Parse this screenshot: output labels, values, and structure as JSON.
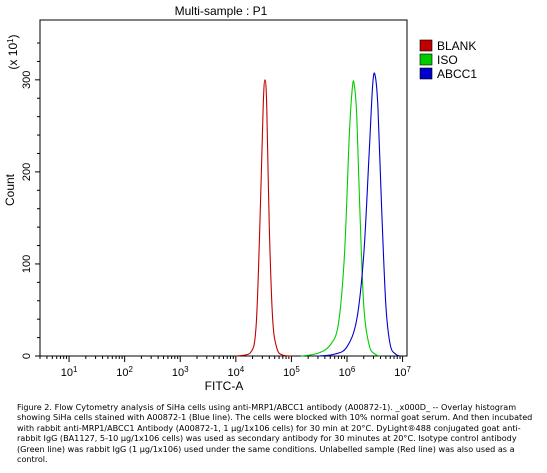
{
  "chart_data": {
    "type": "line",
    "title": "Multi-sample : P1",
    "xlabel": "FITC-A",
    "ylabel": "Count",
    "y_multiplier": "(x 10",
    "y_multiplier_exp": "1",
    "y_multiplier_close": ")",
    "x_scale": "log",
    "xlim": [
      3,
      12000000
    ],
    "ylim": [
      0,
      365
    ],
    "x_ticks": [
      {
        "base": "10",
        "exp": "1",
        "value": 10
      },
      {
        "base": "10",
        "exp": "2",
        "value": 100
      },
      {
        "base": "10",
        "exp": "3",
        "value": 1000
      },
      {
        "base": "10",
        "exp": "4",
        "value": 10000
      },
      {
        "base": "10",
        "exp": "5",
        "value": 100000
      },
      {
        "base": "10",
        "exp": "6",
        "value": 1000000
      },
      {
        "base": "10",
        "exp": "7",
        "value": 10000000
      }
    ],
    "y_ticks": [
      {
        "label": "0",
        "value": 0
      },
      {
        "label": "100",
        "value": 100
      },
      {
        "label": "200",
        "value": 200
      },
      {
        "label": "300",
        "value": 300
      }
    ],
    "legend_position": "top-right",
    "series": [
      {
        "name": "BLANK",
        "color": "#c00000",
        "x": [
          10000,
          18000,
          23000,
          27000,
          31000,
          33500,
          36000,
          40000,
          46000,
          55000,
          70000,
          100000
        ],
        "y": [
          0,
          3,
          30,
          140,
          270,
          300,
          270,
          140,
          40,
          8,
          1,
          0
        ]
      },
      {
        "name": "ISO",
        "color": "#00cc00",
        "x": [
          150000,
          300000,
          500000,
          700000,
          900000,
          1100000,
          1250000,
          1350000,
          1500000,
          1700000,
          2000000,
          2500000,
          3200000,
          4000000
        ],
        "y": [
          0,
          3,
          12,
          35,
          110,
          240,
          292,
          295,
          260,
          160,
          55,
          12,
          2,
          0
        ]
      },
      {
        "name": "ABCC1",
        "color": "#0000cc",
        "x": [
          300000,
          600000,
          1000000,
          1500000,
          2000000,
          2500000,
          2900000,
          3200000,
          3600000,
          4200000,
          5000000,
          6000000,
          7500000,
          9000000
        ],
        "y": [
          0,
          2,
          10,
          40,
          110,
          220,
          295,
          305,
          270,
          160,
          55,
          12,
          2,
          0
        ]
      }
    ]
  },
  "caption": "Figure 2. Flow Cytometry analysis of SiHa cells using anti-MRP1/ABCC1 antibody (A00872-1). _x000D_ -- Overlay histogram showing SiHa cells stained with A00872-1 (Blue line). The cells were blocked with 10% normal goat serum. And then incubated with rabbit anti-MRP1/ABCC1 Antibody (A00872-1, 1 µg/1x106 cells) for 30 min at 20°C. DyLight®488 conjugated goat anti-rabbit IgG (BA1127, 5-10 µg/1x106 cells) was used as secondary antibody for 30 minutes at 20°C. Isotype control antibody (Green line) was rabbit IgG (1 µg/1x106) used under the same conditions. Unlabelled sample (Red line) was also used as a control."
}
